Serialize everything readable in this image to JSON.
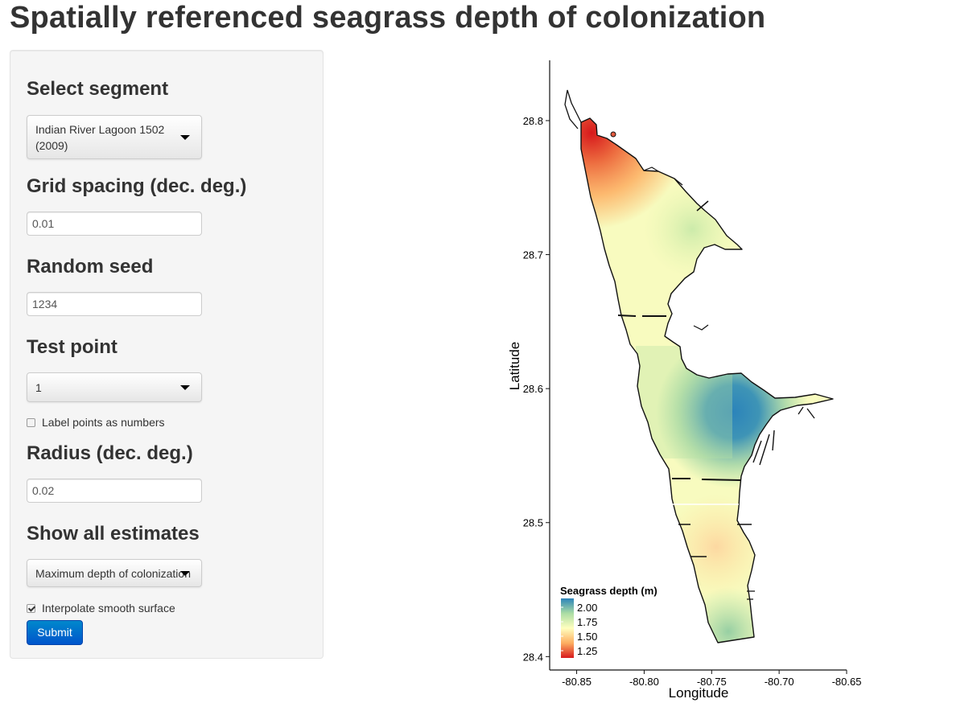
{
  "page": {
    "title": "Spatially referenced seagrass depth of colonization"
  },
  "sidebar": {
    "segment": {
      "label": "Select segment",
      "value_line1": "Indian River Lagoon 1502",
      "value_line2": "(2009)"
    },
    "grid": {
      "label": "Grid spacing (dec. deg.)",
      "value": "0.01"
    },
    "seed": {
      "label": "Random seed",
      "value": "1234"
    },
    "test_point": {
      "label": "Test point",
      "value": "1"
    },
    "label_points": {
      "label": "Label points as numbers",
      "checked": false
    },
    "radius": {
      "label": "Radius (dec. deg.)",
      "value": "0.02"
    },
    "estimates": {
      "label": "Show all estimates",
      "value": "Maximum depth of colonization"
    },
    "interpolate": {
      "label": "Interpolate smooth surface",
      "checked": true
    },
    "submit_label": "Submit"
  },
  "chart_data": {
    "type": "heatmap",
    "xlabel": "Longitude",
    "ylabel": "Latitude",
    "xlim": [
      -80.87,
      -80.65
    ],
    "ylim": [
      28.39,
      28.845
    ],
    "x_ticks": [
      "-80.85",
      "-80.80",
      "-80.75",
      "-80.70",
      "-80.65"
    ],
    "y_ticks": [
      "28.4",
      "28.5",
      "28.6",
      "28.7",
      "28.8"
    ],
    "legend": {
      "title": "Seagrass depth (m)",
      "position": "bottom-left",
      "labels": [
        "2.00",
        "1.75",
        "1.50",
        "1.25"
      ],
      "colors": [
        "#2b83ba",
        "#abdda4",
        "#ffffbf",
        "#fdae61",
        "#d7191c"
      ]
    }
  }
}
